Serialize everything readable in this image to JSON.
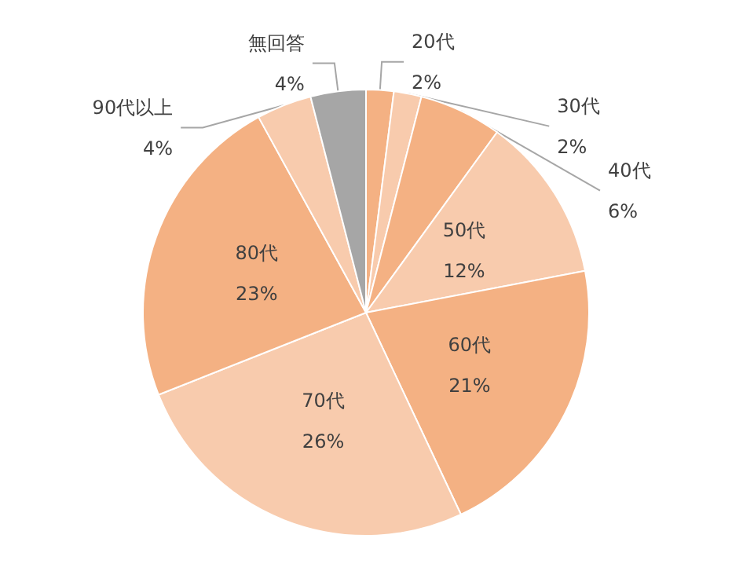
{
  "chart_data": {
    "type": "pie",
    "categories": [
      "20代",
      "30代",
      "40代",
      "50代",
      "60代",
      "70代",
      "80代",
      "90代以上",
      "無回答"
    ],
    "values": [
      2,
      2,
      6,
      12,
      21,
      26,
      23,
      4,
      4
    ],
    "value_labels": [
      "2%",
      "2%",
      "6%",
      "12%",
      "21%",
      "26%",
      "23%",
      "4%",
      "4%"
    ],
    "colors": [
      "#f4b183",
      "#f8cbad",
      "#f4b183",
      "#f8cbad",
      "#f4b183",
      "#f8cbad",
      "#f4b183",
      "#f8cbad",
      "#a6a6a6"
    ],
    "legend": false
  }
}
